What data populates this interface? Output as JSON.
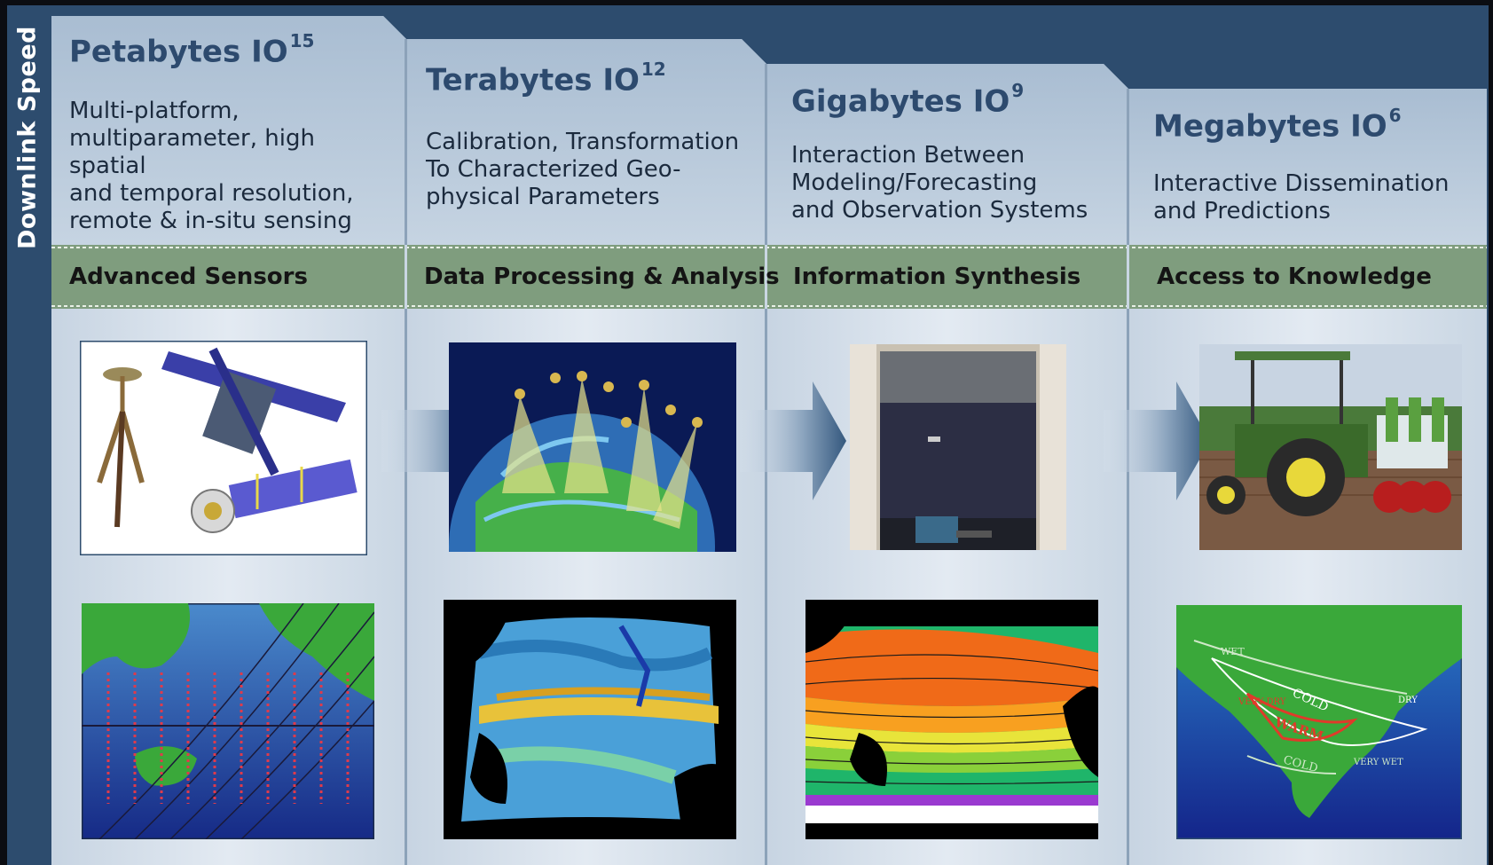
{
  "side_label": "Downlink Speed",
  "stages": [
    {
      "title": "Petabytes",
      "exponent": "15",
      "description": [
        "Multi-platform,",
        "multiparameter, high spatial",
        "and temporal resolution,",
        "remote & in-situ sensing"
      ],
      "band": "Advanced Sensors"
    },
    {
      "title": "Terabytes",
      "exponent": "12",
      "description": [
        "Calibration, Transformation",
        "To Characterized Geo-",
        "physical Parameters"
      ],
      "band": "Data Processing & Analysis"
    },
    {
      "title": "Gigabytes",
      "exponent": "9",
      "description": [
        "Interaction Between",
        "Modeling/Forecasting",
        "and Observation Systems"
      ],
      "band": "Information Synthesis"
    },
    {
      "title": "Megabytes",
      "exponent": "6",
      "description": [
        "Interactive Dissemination",
        "and Predictions"
      ],
      "band": "Access to Knowledge"
    }
  ],
  "map_labels": {
    "cold_1": "COLD",
    "warm": "WARM",
    "cold_2": "COLD",
    "wet": "WET",
    "very_dry": "VERY DRY",
    "dry": "DRY",
    "very_wet": "VERY WET"
  },
  "colors": {
    "frame": "#2d4c6e",
    "panel_light": "#dde6ef",
    "panel_mid": "#b6c7d8",
    "band": "#7f9d7e",
    "title": "#2d4a6e"
  }
}
